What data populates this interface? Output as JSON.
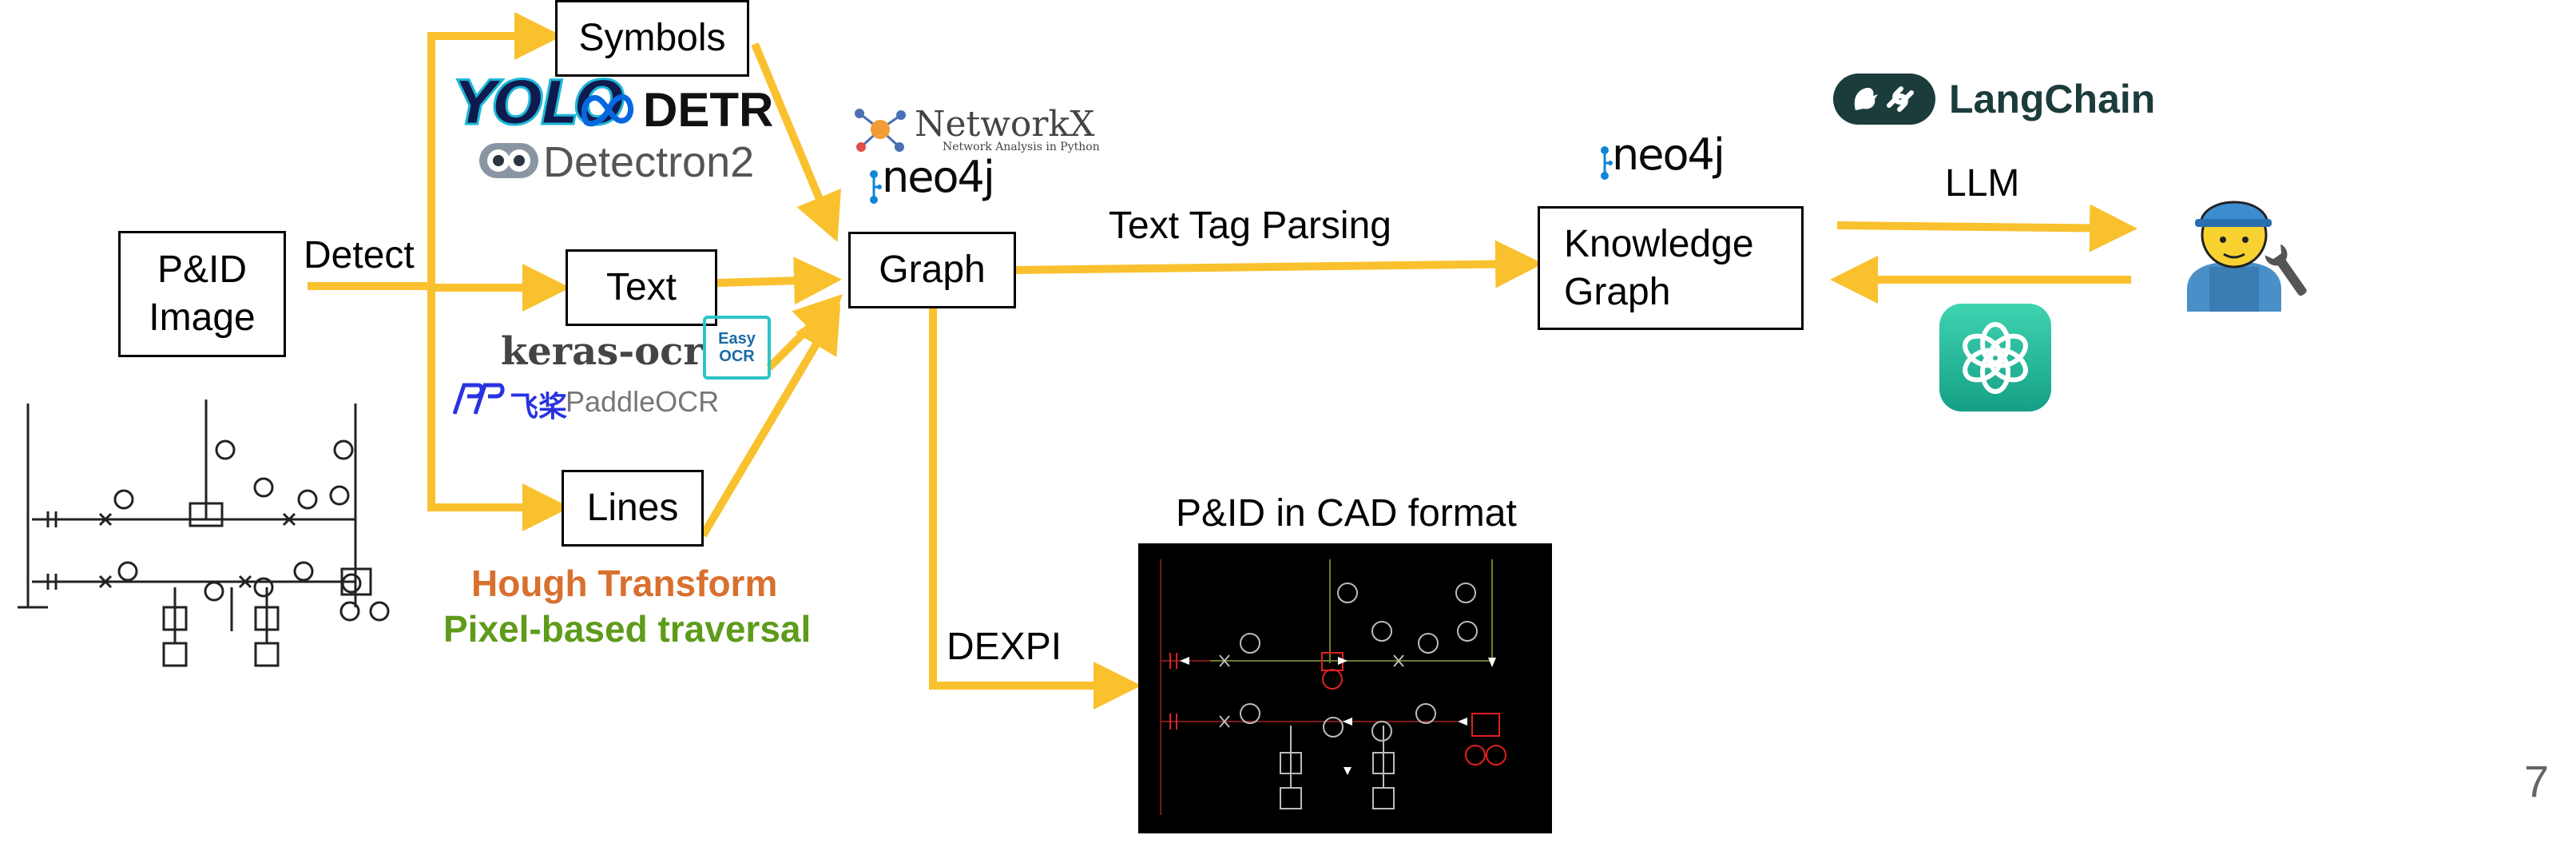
{
  "nodes": {
    "pid_image": "P&ID\nImage",
    "symbols": "Symbols",
    "text": "Text",
    "lines": "Lines",
    "graph": "Graph",
    "knowledge_graph": "Knowledge\nGraph"
  },
  "edge_labels": {
    "detect": "Detect",
    "text_tag_parsing": "Text Tag Parsing",
    "llm": "LLM",
    "dexpi": "DEXPI",
    "cad_caption": "P&ID in CAD format"
  },
  "logos": {
    "yolo": "YOLO",
    "detr": "DETR",
    "detectron2": "Detectron2",
    "keras_ocr": "keras-ocr",
    "easy_ocr": "Easy\nOCR",
    "paddle_ocr_brand": "飞桨",
    "paddle_ocr": "PaddleOCR",
    "networkx": "NetworkX",
    "networkx_tagline": "Network Analysis in Python",
    "neo4j_a": "neo4j",
    "neo4j_b": "neo4j",
    "langchain": "LangChain"
  },
  "line_methods": {
    "hough": "Hough Transform",
    "pixel": "Pixel-based traversal"
  },
  "page_number": "7",
  "colors": {
    "arrow": "#F9C12E",
    "hough": "#D8702F",
    "pixel": "#5E9B1A",
    "langchain": "#1C3C3C",
    "chatgpt": "#1AAE8F",
    "neo4j": "#0A0A0A",
    "cad_bg": "#000000"
  }
}
